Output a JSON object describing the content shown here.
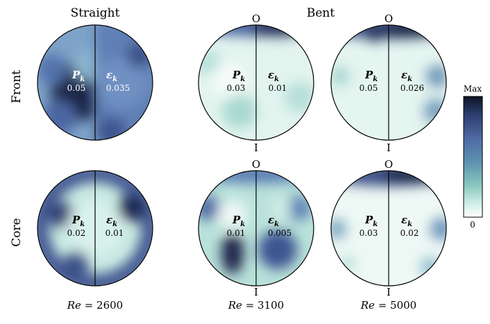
{
  "columns": {
    "straight": "Straight",
    "bent": "Bent"
  },
  "rows": {
    "front": "Front",
    "core": "Core"
  },
  "orientation": {
    "outer": "O",
    "inner": "I"
  },
  "symbols": {
    "production": "P",
    "production_sub": "k",
    "dissipation": "ε",
    "dissipation_sub": "k"
  },
  "reynolds": {
    "prefix": "Re",
    "equals": " = ",
    "values": [
      "2600",
      "3100",
      "5000"
    ]
  },
  "colorbar": {
    "max_label": "Max",
    "min_label": "0",
    "colors": [
      "#0d1424",
      "#2c3d6e",
      "#4f6aa6",
      "#5e93b0",
      "#8ccbc0",
      "#d6f0ea",
      "#ffffff"
    ]
  },
  "panels": [
    {
      "id": "front-2600",
      "p_value": "0.05",
      "e_value": "0.035",
      "case": "straight"
    },
    {
      "id": "front-3100",
      "p_value": "0.03",
      "e_value": "0.01",
      "case": "bent"
    },
    {
      "id": "front-5000",
      "p_value": "0.05",
      "e_value": "0.026",
      "case": "bent"
    },
    {
      "id": "core-2600",
      "p_value": "0.02",
      "e_value": "0.01",
      "case": "straight"
    },
    {
      "id": "core-3100",
      "p_value": "0.01",
      "e_value": "0.005",
      "case": "bent"
    },
    {
      "id": "core-5000",
      "p_value": "0.03",
      "e_value": "0.02",
      "case": "bent"
    }
  ]
}
